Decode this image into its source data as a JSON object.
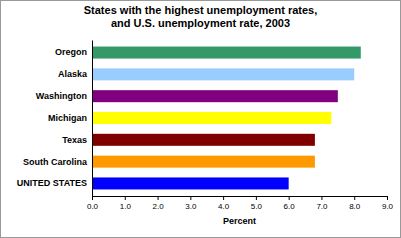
{
  "chart_data": {
    "type": "bar",
    "orientation": "horizontal",
    "title": [
      "States with the highest unemployment rates,",
      "and U.S. unemployment rate, 2003"
    ],
    "x_label": "Percent",
    "categories": [
      "Oregon",
      "Alaska",
      "Washington",
      "Michigan",
      "Texas",
      "South Carolina",
      "UNITED STATES"
    ],
    "values": [
      8.2,
      8.0,
      7.5,
      7.3,
      6.8,
      6.8,
      6.0
    ],
    "colors": [
      "#339966",
      "#99ccff",
      "#800080",
      "#ffff00",
      "#800000",
      "#ff9900",
      "#0000ff"
    ],
    "xlim": [
      0,
      9
    ],
    "xticks": [
      {
        "value": 0,
        "label": "0.0"
      },
      {
        "value": 1,
        "label": "1.0"
      },
      {
        "value": 2,
        "label": "2.0"
      },
      {
        "value": 3,
        "label": "3.0"
      },
      {
        "value": 4,
        "label": "4.0"
      },
      {
        "value": 5,
        "label": "5.0"
      },
      {
        "value": 6,
        "label": "6.0"
      },
      {
        "value": 7,
        "label": "7.0"
      },
      {
        "value": 8,
        "label": "8.0"
      },
      {
        "value": 9,
        "label": "9.0"
      }
    ],
    "grid": false,
    "data_labels": false
  }
}
